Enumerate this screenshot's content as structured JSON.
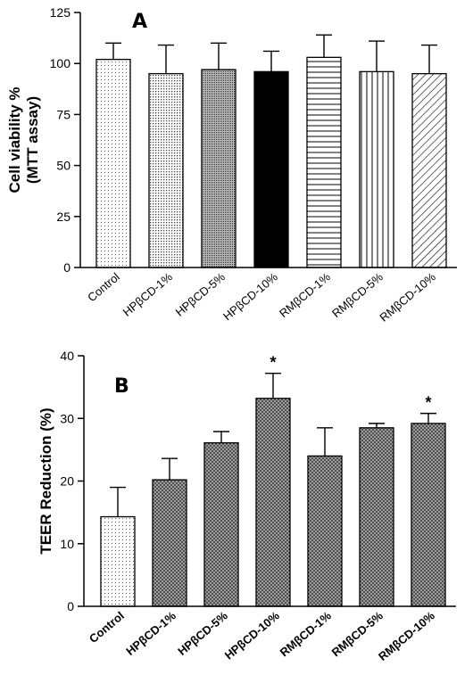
{
  "chart_data": [
    {
      "type": "bar",
      "panel_label": "A",
      "ylabel_lines": [
        "Cell viability %",
        "(MTT assay)"
      ],
      "ylim": [
        0,
        125
      ],
      "yticks": [
        "0",
        "25",
        "50",
        "75",
        "100",
        "125"
      ],
      "categories": [
        "Control",
        "HPβCD-1%",
        "HPβCD-5%",
        "HPβCD-10%",
        "RMβCD-1%",
        "RMβCD-5%",
        "RMβCD-10%"
      ],
      "values": [
        102,
        95,
        97,
        96,
        103,
        96,
        95
      ],
      "error_upper": [
        8,
        14,
        13,
        10,
        11,
        15,
        14
      ],
      "fill_patterns": [
        "dots-sparse",
        "dots-medium",
        "dots-dense",
        "solid",
        "horizontal-lines",
        "vertical-lines",
        "diagonal-lines"
      ],
      "annotations": []
    },
    {
      "type": "bar",
      "panel_label": "B",
      "ylabel": "TEER Reduction  (%)",
      "ylim": [
        0,
        40
      ],
      "yticks": [
        "0",
        "10",
        "20",
        "30",
        "40"
      ],
      "categories": [
        "Control",
        "HPβCD-1%",
        "HPβCD-5%",
        "HPβCD-10%",
        "RMβCD-1%",
        "RMβCD-5%",
        "RMβCD-10%"
      ],
      "values": [
        14.3,
        20.2,
        26.1,
        33.2,
        24.0,
        28.5,
        29.2
      ],
      "error_upper": [
        4.7,
        3.4,
        1.8,
        4.0,
        4.5,
        0.7,
        1.6
      ],
      "fill_patterns": [
        "dots-sparse",
        "crosshatch",
        "crosshatch",
        "crosshatch",
        "crosshatch",
        "crosshatch",
        "crosshatch"
      ],
      "annotations": [
        "",
        "",
        "",
        "*",
        "",
        "",
        "*"
      ]
    }
  ]
}
